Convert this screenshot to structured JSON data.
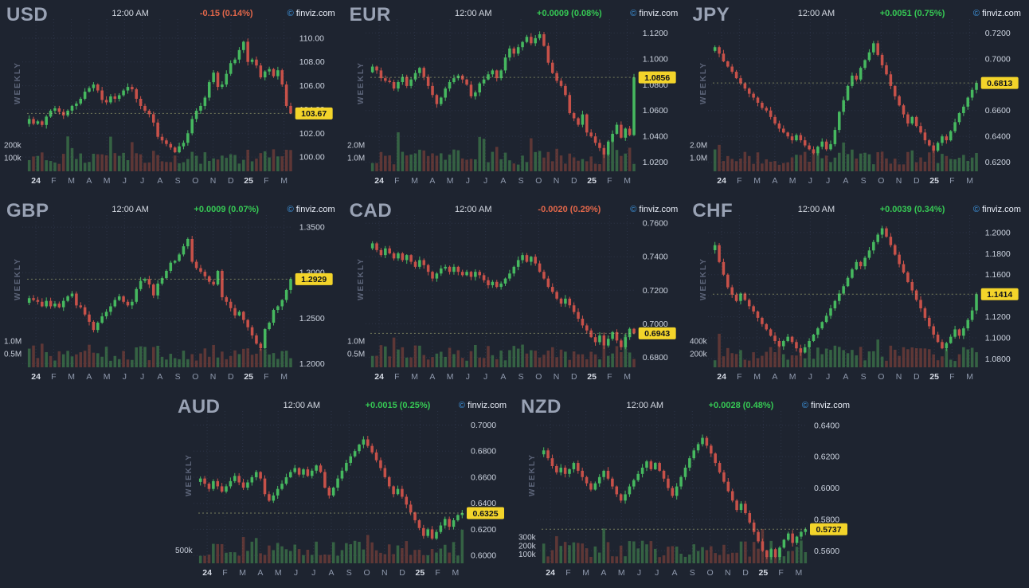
{
  "page": {
    "bg": "#1e2430"
  },
  "chart_data": {
    "type": "candlestick",
    "timeframe": "WEEKLY",
    "brand_copy": "©",
    "brand_name": "finviz.com",
    "x_labels": [
      "24",
      "F",
      "M",
      "A",
      "M",
      "J",
      "J",
      "A",
      "S",
      "O",
      "N",
      "D",
      "25",
      "F",
      "M"
    ],
    "colors": {
      "up": "#46b85f",
      "down": "#c75149",
      "vol_up": "rgba(72,150,84,0.55)",
      "vol_down": "rgba(158,74,60,0.5)",
      "badge_bg": "#f3d42a",
      "badge_text": "#10131c",
      "change_up": "#36c954",
      "change_down": "#e2674a",
      "grid": "#39415a",
      "tick_text": "#ccd3df",
      "month_text": "#8f99ad",
      "year_text": "#d7dce6",
      "vol_text": "#c9cfdb",
      "last_line": "#c9cf85"
    },
    "charts": [
      {
        "symbol": "USD",
        "time": "12:00 AM",
        "change": "-0.15 (0.14%)",
        "direction": "down",
        "last": 103.67,
        "last_label": "103.67",
        "y_domain": [
          98.8,
          111.2
        ],
        "y_ticks": [
          "110.00",
          "108.00",
          "106.00",
          "104.00",
          "102.00",
          "100.00"
        ],
        "vol_ticks": [
          {
            "label": "200k",
            "value": 200
          },
          {
            "label": "100k",
            "value": 100
          }
        ],
        "vol_axis_max": 320,
        "closes": [
          103.2,
          102.8,
          103.0,
          102.7,
          103.4,
          103.9,
          104.1,
          103.8,
          103.5,
          103.9,
          104.3,
          104.5,
          104.9,
          105.5,
          105.8,
          106.1,
          105.6,
          104.8,
          104.6,
          105.1,
          104.9,
          105.2,
          105.6,
          105.9,
          105.7,
          104.9,
          104.3,
          103.9,
          103.6,
          102.9,
          101.7,
          101.4,
          101.1,
          100.8,
          100.4,
          100.9,
          101.2,
          102.0,
          103.2,
          103.9,
          104.3,
          105.0,
          106.3,
          107.1,
          105.9,
          106.1,
          107.0,
          107.9,
          108.2,
          109.0,
          109.7,
          108.0,
          108.2,
          107.7,
          106.7,
          107.2,
          107.4,
          106.8,
          107.3,
          106.1,
          104.3,
          103.67
        ]
      },
      {
        "symbol": "EUR",
        "time": "12:00 AM",
        "change": "+0.0009 (0.08%)",
        "direction": "up",
        "last": 1.0856,
        "last_label": "1.0856",
        "y_domain": [
          1.013,
          1.127
        ],
        "y_ticks": [
          "1.1200",
          "1.1000",
          "1.0800",
          "1.0600",
          "1.0400",
          "1.0200"
        ],
        "vol_ticks": [
          {
            "label": "2.0M",
            "value": 2000
          },
          {
            "label": "1.0M",
            "value": 1000
          }
        ],
        "vol_axis_max": 3200,
        "closes": [
          1.094,
          1.091,
          1.085,
          1.083,
          1.082,
          1.077,
          1.082,
          1.086,
          1.079,
          1.084,
          1.089,
          1.093,
          1.086,
          1.079,
          1.072,
          1.065,
          1.07,
          1.077,
          1.082,
          1.085,
          1.087,
          1.084,
          1.08,
          1.071,
          1.074,
          1.081,
          1.084,
          1.088,
          1.091,
          1.085,
          1.091,
          1.101,
          1.108,
          1.104,
          1.109,
          1.113,
          1.117,
          1.112,
          1.116,
          1.119,
          1.11,
          1.097,
          1.089,
          1.083,
          1.079,
          1.072,
          1.058,
          1.054,
          1.049,
          1.057,
          1.043,
          1.04,
          1.035,
          1.031,
          1.026,
          1.036,
          1.042,
          1.049,
          1.039,
          1.046,
          1.041,
          1.0856
        ]
      },
      {
        "symbol": "JPY",
        "time": "12:00 AM",
        "change": "+0.0051 (0.75%)",
        "direction": "up",
        "last": 0.6813,
        "last_label": "0.6813",
        "y_domain": [
          0.613,
          0.727
        ],
        "y_ticks": [
          "0.7200",
          "0.7000",
          "0.6800",
          "0.6600",
          "0.6400",
          "0.6200"
        ],
        "vol_ticks": [
          {
            "label": "2.0M",
            "value": 2000
          },
          {
            "label": "1.0M",
            "value": 1000
          }
        ],
        "vol_axis_max": 3200,
        "closes": [
          0.709,
          0.704,
          0.698,
          0.694,
          0.69,
          0.685,
          0.681,
          0.677,
          0.673,
          0.67,
          0.666,
          0.662,
          0.66,
          0.655,
          0.65,
          0.646,
          0.643,
          0.64,
          0.637,
          0.641,
          0.637,
          0.633,
          0.63,
          0.627,
          0.632,
          0.636,
          0.63,
          0.634,
          0.645,
          0.659,
          0.668,
          0.679,
          0.687,
          0.684,
          0.693,
          0.699,
          0.705,
          0.712,
          0.703,
          0.695,
          0.688,
          0.679,
          0.671,
          0.664,
          0.657,
          0.65,
          0.655,
          0.648,
          0.643,
          0.637,
          0.633,
          0.629,
          0.635,
          0.64,
          0.637,
          0.644,
          0.651,
          0.658,
          0.663,
          0.67,
          0.676,
          0.6813
        ]
      },
      {
        "symbol": "GBP",
        "time": "12:00 AM",
        "change": "+0.0009 (0.07%)",
        "direction": "up",
        "last": 1.2929,
        "last_label": "1.2929",
        "y_domain": [
          1.196,
          1.358
        ],
        "y_ticks": [
          "1.3500",
          "1.3000",
          "1.2500",
          "1.2000"
        ],
        "vol_ticks": [
          {
            "label": "1.0M",
            "value": 1000
          },
          {
            "label": "0.5M",
            "value": 500
          }
        ],
        "vol_axis_max": 1600,
        "closes": [
          1.272,
          1.27,
          1.268,
          1.263,
          1.269,
          1.263,
          1.266,
          1.262,
          1.269,
          1.274,
          1.277,
          1.264,
          1.262,
          1.254,
          1.246,
          1.237,
          1.245,
          1.252,
          1.257,
          1.263,
          1.27,
          1.274,
          1.268,
          1.264,
          1.268,
          1.282,
          1.291,
          1.293,
          1.287,
          1.275,
          1.288,
          1.294,
          1.302,
          1.311,
          1.313,
          1.32,
          1.329,
          1.337,
          1.312,
          1.305,
          1.301,
          1.296,
          1.29,
          1.287,
          1.302,
          1.273,
          1.268,
          1.261,
          1.253,
          1.257,
          1.248,
          1.24,
          1.231,
          1.222,
          1.217,
          1.238,
          1.245,
          1.259,
          1.263,
          1.27,
          1.281,
          1.2929
        ]
      },
      {
        "symbol": "CAD",
        "time": "12:00 AM",
        "change": "-0.0020 (0.29%)",
        "direction": "down",
        "last": 0.6943,
        "last_label": "0.6943",
        "y_domain": [
          0.674,
          0.762
        ],
        "y_ticks": [
          "0.7600",
          "0.7400",
          "0.7200",
          "0.7000",
          "0.6800"
        ],
        "vol_ticks": [
          {
            "label": "1.0M",
            "value": 1000
          },
          {
            "label": "0.5M",
            "value": 500
          }
        ],
        "vol_axis_max": 1600,
        "closes": [
          0.748,
          0.744,
          0.741,
          0.745,
          0.742,
          0.739,
          0.742,
          0.738,
          0.741,
          0.737,
          0.734,
          0.738,
          0.735,
          0.731,
          0.727,
          0.73,
          0.733,
          0.734,
          0.731,
          0.734,
          0.731,
          0.729,
          0.731,
          0.728,
          0.731,
          0.729,
          0.726,
          0.723,
          0.725,
          0.722,
          0.724,
          0.727,
          0.73,
          0.734,
          0.738,
          0.741,
          0.737,
          0.74,
          0.736,
          0.731,
          0.727,
          0.722,
          0.719,
          0.715,
          0.712,
          0.715,
          0.711,
          0.707,
          0.703,
          0.699,
          0.696,
          0.692,
          0.689,
          0.693,
          0.687,
          0.691,
          0.695,
          0.69,
          0.686,
          0.692,
          0.697,
          0.6943
        ]
      },
      {
        "symbol": "CHF",
        "time": "12:00 AM",
        "change": "+0.0039 (0.34%)",
        "direction": "up",
        "last": 1.1414,
        "last_label": "1.1414",
        "y_domain": [
          1.072,
          1.212
        ],
        "y_ticks": [
          "1.2000",
          "1.1800",
          "1.1600",
          "1.1400",
          "1.1200",
          "1.1000",
          "1.0800"
        ],
        "vol_ticks": [
          {
            "label": "400k",
            "value": 400
          },
          {
            "label": "200k",
            "value": 200
          }
        ],
        "vol_axis_max": 640,
        "closes": [
          1.188,
          1.172,
          1.16,
          1.148,
          1.141,
          1.135,
          1.142,
          1.136,
          1.13,
          1.125,
          1.119,
          1.113,
          1.108,
          1.102,
          1.097,
          1.092,
          1.097,
          1.101,
          1.096,
          1.09,
          1.086,
          1.091,
          1.097,
          1.103,
          1.109,
          1.115,
          1.121,
          1.128,
          1.135,
          1.142,
          1.149,
          1.157,
          1.165,
          1.172,
          1.168,
          1.176,
          1.183,
          1.191,
          1.198,
          1.204,
          1.196,
          1.188,
          1.179,
          1.17,
          1.162,
          1.153,
          1.145,
          1.136,
          1.128,
          1.119,
          1.111,
          1.103,
          1.096,
          1.09,
          1.095,
          1.101,
          1.108,
          1.102,
          1.109,
          1.117,
          1.126,
          1.1414
        ]
      },
      {
        "symbol": "AUD",
        "time": "12:00 AM",
        "change": "+0.0015 (0.25%)",
        "direction": "up",
        "last": 0.6325,
        "last_label": "0.6325",
        "y_domain": [
          0.594,
          0.707
        ],
        "y_ticks": [
          "0.7000",
          "0.6800",
          "0.6600",
          "0.6400",
          "0.6200",
          "0.6000"
        ],
        "vol_ticks": [
          {
            "label": "500k",
            "value": 500
          }
        ],
        "vol_axis_max": 1600,
        "closes": [
          0.659,
          0.655,
          0.651,
          0.657,
          0.653,
          0.649,
          0.653,
          0.657,
          0.661,
          0.656,
          0.652,
          0.656,
          0.66,
          0.664,
          0.659,
          0.647,
          0.642,
          0.646,
          0.651,
          0.655,
          0.66,
          0.664,
          0.667,
          0.662,
          0.666,
          0.661,
          0.665,
          0.669,
          0.664,
          0.652,
          0.646,
          0.652,
          0.659,
          0.665,
          0.671,
          0.676,
          0.68,
          0.685,
          0.689,
          0.684,
          0.679,
          0.673,
          0.667,
          0.66,
          0.653,
          0.647,
          0.651,
          0.645,
          0.639,
          0.633,
          0.627,
          0.621,
          0.615,
          0.62,
          0.613,
          0.618,
          0.623,
          0.628,
          0.622,
          0.627,
          0.631,
          0.6325
        ]
      },
      {
        "symbol": "NZD",
        "time": "12:00 AM",
        "change": "+0.0028 (0.48%)",
        "direction": "up",
        "last": 0.5737,
        "last_label": "0.5737",
        "y_domain": [
          0.552,
          0.646
        ],
        "y_ticks": [
          "0.6400",
          "0.6200",
          "0.6000",
          "0.5800",
          "0.5600"
        ],
        "vol_ticks": [
          {
            "label": "300k",
            "value": 300
          },
          {
            "label": "200k",
            "value": 200
          },
          {
            "label": "100k",
            "value": 100
          }
        ],
        "vol_axis_max": 480,
        "closes": [
          0.624,
          0.619,
          0.614,
          0.61,
          0.613,
          0.609,
          0.612,
          0.616,
          0.611,
          0.607,
          0.603,
          0.599,
          0.603,
          0.607,
          0.611,
          0.606,
          0.601,
          0.596,
          0.592,
          0.596,
          0.601,
          0.605,
          0.609,
          0.613,
          0.617,
          0.612,
          0.616,
          0.611,
          0.606,
          0.6,
          0.595,
          0.601,
          0.607,
          0.613,
          0.619,
          0.624,
          0.628,
          0.632,
          0.627,
          0.622,
          0.616,
          0.61,
          0.604,
          0.598,
          0.592,
          0.586,
          0.59,
          0.584,
          0.578,
          0.572,
          0.566,
          0.56,
          0.556,
          0.561,
          0.556,
          0.562,
          0.567,
          0.571,
          0.565,
          0.569,
          0.572,
          0.5737
        ]
      }
    ]
  }
}
